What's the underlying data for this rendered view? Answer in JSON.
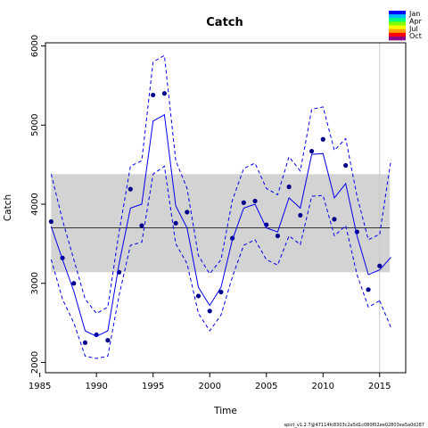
{
  "chart_data": {
    "type": "line",
    "title": "Catch",
    "xlabel": "Time",
    "ylabel": "Catch",
    "xlim": [
      1985.5,
      2017.3
    ],
    "ylim": [
      1870,
      6040
    ],
    "x_ticks": [
      1985,
      1990,
      1995,
      2000,
      2005,
      2010,
      2015
    ],
    "y_ticks": [
      2000,
      3000,
      4000,
      5000,
      6000
    ],
    "reference_band": [
      3140,
      4380
    ],
    "reference_line": 3700,
    "vline_x": 2015,
    "colors": {
      "series": "#0000ee",
      "points": "#00008b",
      "band": "#d3d3d3",
      "ref": "#000000",
      "vline": "#c8c8c8"
    },
    "legend": {
      "position": "top-right",
      "labels": [
        "Jan",
        "Apr",
        "Jul",
        "Oct"
      ],
      "colors": [
        "#0000ff",
        "#00bfff",
        "#00ff7f",
        "#7fff00",
        "#ffff00",
        "#ffa500",
        "#ff0000",
        "#8b008b"
      ]
    },
    "series": [
      {
        "type": "points",
        "x": [
          1986,
          1987,
          1988,
          1989,
          1990,
          1991,
          1992,
          1993,
          1994,
          1995,
          1996,
          1997,
          1998,
          1999,
          2000,
          2001,
          2002,
          2003,
          2004,
          2005,
          2006,
          2007,
          2008,
          2009,
          2010,
          2011,
          2012,
          2013,
          2014,
          2015
        ],
        "y": [
          3780,
          3320,
          3000,
          2250,
          2350,
          2280,
          3140,
          4190,
          3730,
          5380,
          5400,
          3760,
          3900,
          2840,
          2650,
          2890,
          3570,
          4020,
          4040,
          3740,
          3600,
          4220,
          3860,
          4670,
          4820,
          3810,
          4490,
          3650,
          2920,
          3220
        ]
      },
      {
        "type": "line",
        "x": [
          1986,
          1987,
          1988,
          1989,
          1990,
          1991,
          1992,
          1993,
          1994,
          1995,
          1996,
          1997,
          1998,
          1999,
          2000,
          2001,
          2002,
          2003,
          2004,
          2005,
          2006,
          2007,
          2008,
          2009,
          2010,
          2011,
          2012,
          2013,
          2014,
          2015
        ],
        "y": [
          3720,
          3300,
          2900,
          2400,
          2330,
          2400,
          3250,
          3950,
          4000,
          5050,
          5130,
          3980,
          3700,
          2950,
          2720,
          2950,
          3550,
          3950,
          4000,
          3700,
          3650,
          4080,
          3950,
          4630,
          4640,
          4080,
          4260,
          3600,
          3110,
          3170
        ]
      },
      {
        "type": "dashed",
        "x": [
          1986,
          1987,
          1988,
          1989,
          1990,
          1991,
          1992,
          1993,
          1994,
          1995,
          1996,
          1997,
          1998,
          1999,
          2000,
          2001,
          2002,
          2003,
          2004,
          2005,
          2006,
          2007,
          2008,
          2009,
          2010,
          2011,
          2012,
          2013,
          2014,
          2015
        ],
        "y": [
          4380,
          3800,
          3300,
          2800,
          2620,
          2700,
          3650,
          4480,
          4550,
          5800,
          5880,
          4550,
          4200,
          3350,
          3120,
          3300,
          4050,
          4450,
          4520,
          4200,
          4120,
          4600,
          4420,
          5200,
          5230,
          4680,
          4830,
          4100,
          3550,
          3620
        ]
      },
      {
        "type": "dashed",
        "x": [
          1986,
          1987,
          1988,
          1989,
          1990,
          1991,
          1992,
          1993,
          1994,
          1995,
          1996,
          1997,
          1998,
          1999,
          2000,
          2001,
          2002,
          2003,
          2004,
          2005,
          2006,
          2007,
          2008,
          2009,
          2010,
          2011,
          2012,
          2013,
          2014,
          2015
        ],
        "y": [
          3300,
          2800,
          2500,
          2080,
          2050,
          2080,
          2850,
          3480,
          3520,
          4380,
          4480,
          3500,
          3250,
          2620,
          2400,
          2600,
          3080,
          3480,
          3550,
          3300,
          3230,
          3600,
          3490,
          4100,
          4110,
          3600,
          3730,
          3110,
          2700,
          2780
        ]
      },
      {
        "type": "line",
        "x": [
          2015,
          2016
        ],
        "y": [
          3170,
          3330
        ]
      },
      {
        "type": "dashed",
        "x": [
          2015,
          2016
        ],
        "y": [
          3620,
          4560
        ]
      },
      {
        "type": "dashed",
        "x": [
          2015,
          2016
        ],
        "y": [
          2780,
          2440
        ]
      }
    ]
  },
  "footer": "spict_v1.2.7@47114fc8303c2a5d1c080f02ee02803ea5a0d287"
}
